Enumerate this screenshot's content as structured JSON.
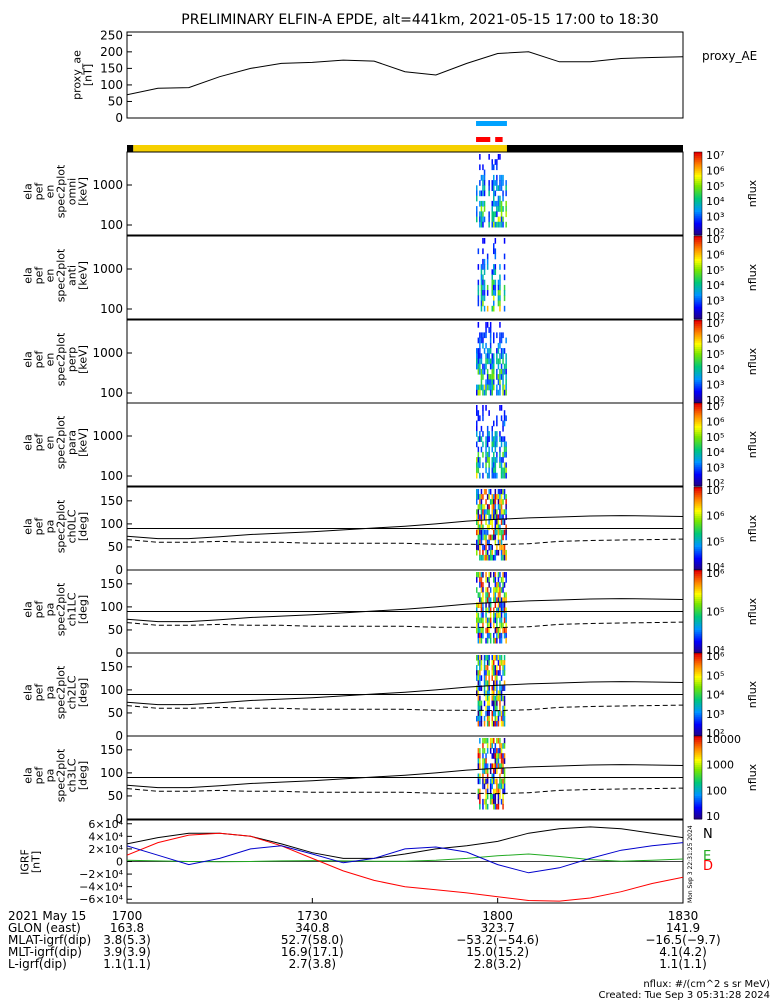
{
  "title": "PRELIMINARY ELFIN-A EPDE, alt=441km, 2021-05-15 17:00 to 18:30",
  "chart_data": [
    {
      "panel": "proxy_ae",
      "type": "line",
      "ylabel": [
        "proxy_ae",
        "[nT]"
      ],
      "legend": "proxy_AE",
      "yticks": [
        "0",
        "50",
        "100",
        "150",
        "200",
        "250"
      ],
      "ylim": [
        0,
        260
      ],
      "x_minutes": [
        0,
        5,
        10,
        15,
        20,
        25,
        30,
        35,
        40,
        45,
        50,
        55,
        60,
        65,
        70,
        75,
        80,
        85,
        90
      ],
      "values": [
        70,
        90,
        92,
        125,
        150,
        165,
        168,
        175,
        172,
        140,
        130,
        165,
        195,
        200,
        170,
        170,
        180,
        183,
        185
      ]
    },
    {
      "panel": "orbit-bar",
      "type": "bar",
      "segments": [
        {
          "label": "science",
          "color": "#f6d000",
          "from_min": 1,
          "to_min": 61.5
        },
        {
          "label": "no-data",
          "color": "#000000",
          "from_min": 61.5,
          "to_min": 90
        }
      ],
      "markers": [
        {
          "color": "#00a2ff",
          "from_min": 56.5,
          "to_min": 61.5
        },
        {
          "color": "#ff0000",
          "from_min": 56.5,
          "to_min": 58.8
        },
        {
          "color": "#ff0000",
          "from_min": 59.6,
          "to_min": 60.8
        }
      ]
    },
    {
      "panel": "omni",
      "type": "heatmap",
      "ylabel": [
        "ela",
        "pef",
        "en",
        "spec2plot",
        "omni",
        "[keV]"
      ],
      "yticks": [
        "100",
        "1000"
      ],
      "cbar_ticks": [
        "10²",
        "10³",
        "10⁴",
        "10⁵",
        "10⁶",
        "10⁷"
      ],
      "cbar_label": "nflux",
      "active_window_min": [
        56.5,
        61.5
      ]
    },
    {
      "panel": "anti",
      "type": "heatmap",
      "ylabel": [
        "ela",
        "pef",
        "en",
        "spec2plot",
        "anti",
        "[keV]"
      ],
      "yticks": [
        "100",
        "1000"
      ],
      "cbar_ticks": [
        "10²",
        "10³",
        "10⁴",
        "10⁵",
        "10⁶",
        "10⁷"
      ],
      "cbar_label": "nflux",
      "active_window_min": [
        56.5,
        61.5
      ]
    },
    {
      "panel": "perp",
      "type": "heatmap",
      "ylabel": [
        "ela",
        "pef",
        "en",
        "spec2plot",
        "perp",
        "[keV]"
      ],
      "yticks": [
        "100",
        "1000"
      ],
      "cbar_ticks": [
        "10²",
        "10³",
        "10⁴",
        "10⁵",
        "10⁶",
        "10⁷"
      ],
      "cbar_label": "nflux",
      "active_window_min": [
        56.5,
        61.5
      ]
    },
    {
      "panel": "para",
      "type": "heatmap",
      "ylabel": [
        "ela",
        "pef",
        "en",
        "spec2plot",
        "para",
        "[keV]"
      ],
      "yticks": [
        "100",
        "1000"
      ],
      "cbar_ticks": [
        "10²",
        "10³",
        "10⁴",
        "10⁵",
        "10⁶",
        "10⁷"
      ],
      "cbar_label": "nflux",
      "active_window_min": [
        56.5,
        61.5
      ]
    },
    {
      "panel": "ch0LC",
      "type": "heatmap",
      "ylabel": [
        "ela",
        "pef",
        "pa",
        "spec2plot",
        "ch0LC",
        "[deg]"
      ],
      "yticks": [
        "0",
        "50",
        "100",
        "150"
      ],
      "ylim": [
        0,
        180
      ],
      "cbar_ticks": [
        "10⁴",
        "10⁵",
        "10⁶",
        "10⁷"
      ],
      "cbar_label": "nflux",
      "active_window_min": [
        56.5,
        61.5
      ],
      "lc_solid_deg": [
        73,
        68,
        68,
        72,
        77,
        80,
        83,
        87,
        91,
        95,
        100,
        106,
        110,
        113,
        115,
        117,
        118,
        117,
        116
      ],
      "lc_dashed_deg": [
        66,
        60,
        60,
        62,
        60,
        60,
        58,
        58,
        58,
        58,
        56,
        56,
        55,
        57,
        62,
        64,
        65,
        66,
        67
      ]
    },
    {
      "panel": "ch1LC",
      "type": "heatmap",
      "ylabel": [
        "ela",
        "pef",
        "pa",
        "spec2plot",
        "ch1LC",
        "[deg]"
      ],
      "yticks": [
        "0",
        "50",
        "100",
        "150"
      ],
      "ylim": [
        0,
        180
      ],
      "cbar_ticks": [
        "10⁴",
        "10⁵",
        "10⁶"
      ],
      "cbar_label": "nflux",
      "active_window_min": [
        56.5,
        61.5
      ],
      "lc_solid_deg": [
        73,
        68,
        68,
        72,
        77,
        80,
        83,
        87,
        91,
        95,
        100,
        106,
        110,
        113,
        115,
        117,
        118,
        117,
        116
      ],
      "lc_dashed_deg": [
        66,
        60,
        60,
        62,
        60,
        60,
        58,
        58,
        58,
        58,
        56,
        56,
        55,
        57,
        62,
        64,
        65,
        66,
        67
      ]
    },
    {
      "panel": "ch2LC",
      "type": "heatmap",
      "ylabel": [
        "ela",
        "pef",
        "pa",
        "spec2plot",
        "ch2LC",
        "[deg]"
      ],
      "yticks": [
        "0",
        "50",
        "100",
        "150"
      ],
      "ylim": [
        0,
        180
      ],
      "cbar_ticks": [
        "10²",
        "10³",
        "10⁴",
        "10⁵",
        "10⁶"
      ],
      "cbar_label": "nflux",
      "active_window_min": [
        56.5,
        61.5
      ],
      "lc_solid_deg": [
        73,
        68,
        68,
        72,
        77,
        80,
        83,
        87,
        91,
        95,
        100,
        106,
        110,
        113,
        115,
        117,
        118,
        117,
        116
      ],
      "lc_dashed_deg": [
        66,
        60,
        60,
        62,
        60,
        60,
        58,
        58,
        58,
        58,
        56,
        56,
        55,
        57,
        62,
        64,
        65,
        66,
        67
      ]
    },
    {
      "panel": "ch3LC",
      "type": "heatmap",
      "ylabel": [
        "ela",
        "pef",
        "pa",
        "spec2plot",
        "ch3LC",
        "[deg]"
      ],
      "yticks": [
        "0",
        "50",
        "100",
        "150"
      ],
      "ylim": [
        0,
        180
      ],
      "cbar_ticks": [
        "10",
        "100",
        "1000",
        "10000"
      ],
      "cbar_label": "nflux",
      "active_window_min": [
        56.5,
        61.5
      ],
      "lc_solid_deg": [
        73,
        68,
        68,
        72,
        77,
        80,
        83,
        87,
        91,
        95,
        100,
        106,
        110,
        113,
        115,
        117,
        118,
        117,
        116
      ],
      "lc_dashed_deg": [
        66,
        60,
        60,
        62,
        60,
        60,
        58,
        58,
        58,
        58,
        56,
        56,
        55,
        57,
        62,
        64,
        65,
        66,
        67
      ]
    },
    {
      "panel": "IGRF",
      "type": "line",
      "ylabel": [
        "IGRF",
        "[nT]"
      ],
      "yticks": [
        "−6×10⁴",
        "−4×10⁴",
        "−2×10⁴",
        "0",
        "2×10⁴",
        "4×10⁴",
        "6×10⁴"
      ],
      "ylim": [
        -66000,
        66000
      ],
      "x_minutes": [
        0,
        5,
        10,
        15,
        20,
        25,
        30,
        35,
        40,
        45,
        50,
        55,
        60,
        65,
        70,
        75,
        80,
        85,
        90
      ],
      "series": [
        {
          "name": "N",
          "color": "#000000",
          "values": [
            28000,
            38000,
            45000,
            45000,
            40000,
            28000,
            14000,
            5000,
            5000,
            12000,
            20000,
            25000,
            32000,
            45000,
            52000,
            55000,
            52000,
            45000,
            38000
          ]
        },
        {
          "name": "E",
          "color": "#22aa22",
          "values": [
            2000,
            1000,
            0,
            -500,
            0,
            1000,
            1500,
            1000,
            500,
            500,
            2000,
            5000,
            9000,
            12000,
            8000,
            3000,
            500,
            2000,
            4000
          ]
        },
        {
          "name": "D",
          "color": "#ff0000",
          "values": [
            10000,
            30000,
            42000,
            45000,
            40000,
            25000,
            5000,
            -15000,
            -30000,
            -40000,
            -45000,
            -50000,
            -56000,
            -62000,
            -63000,
            -58000,
            -48000,
            -35000,
            -25000
          ]
        },
        {
          "name": "",
          "color": "#0000cc",
          "values": [
            25000,
            10000,
            -5000,
            5000,
            20000,
            25000,
            12000,
            -2000,
            5000,
            20000,
            23000,
            15000,
            -5000,
            -18000,
            -10000,
            5000,
            18000,
            25000,
            30000
          ]
        }
      ],
      "legend": [
        "N",
        "E",
        "D"
      ]
    }
  ],
  "xaxis": {
    "row_labels": [
      "2021 May 15",
      "GLON (east)",
      "MLAT-igrf(dip)",
      "MLT-igrf(dip)",
      "L-igrf(dip)"
    ],
    "columns": [
      {
        "minute": 0,
        "values": [
          "1700",
          "163.8",
          "3.8(5.3)",
          "3.9(3.9)",
          "1.1(1.1)"
        ]
      },
      {
        "minute": 30,
        "values": [
          "1730",
          "340.8",
          "52.7(58.0)",
          "16.9(17.1)",
          "2.7(3.8)"
        ]
      },
      {
        "minute": 60,
        "values": [
          "1800",
          "323.7",
          "−53.2(−54.6)",
          "15.0(15.2)",
          "2.8(3.2)"
        ]
      },
      {
        "minute": 90,
        "values": [
          "1830",
          "141.9",
          "−16.5(−9.7)",
          "4.1(4.2)",
          "1.1(1.1)"
        ]
      }
    ]
  },
  "footer": {
    "units": "nflux: #/(cm^2 s sr MeV)",
    "created": "Created: Tue Sep  3 05:31:28 2024",
    "stamp": "Mon Sep  3 22:31:25 2024"
  }
}
